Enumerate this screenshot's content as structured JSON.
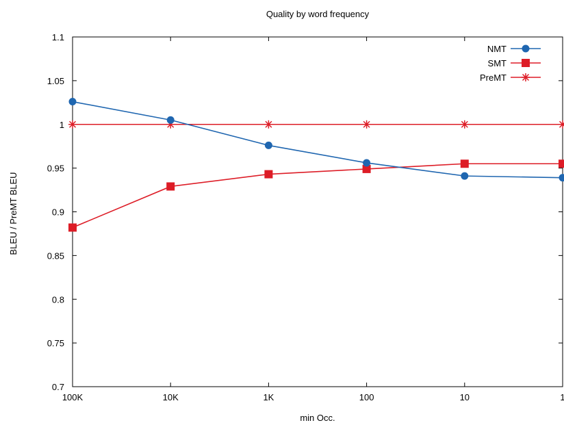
{
  "chart_data": {
    "type": "line",
    "title": "Quality by word frequency",
    "xlabel": "min Occ.",
    "ylabel": "BLEU / PreMT BLEU",
    "categories": [
      "100K",
      "10K",
      "1K",
      "100",
      "10",
      "1"
    ],
    "ylim": [
      0.7,
      1.1
    ],
    "yticks": [
      "0.7",
      "0.75",
      "0.8",
      "0.85",
      "0.9",
      "0.95",
      "1",
      "1.05",
      "1.1"
    ],
    "grid": false,
    "legend_position": "top-right",
    "series": [
      {
        "name": "NMT",
        "color": "#1f66b0",
        "marker": "circle",
        "values": [
          1.026,
          1.005,
          0.976,
          0.956,
          0.941,
          0.939
        ]
      },
      {
        "name": "SMT",
        "color": "#dd1c26",
        "marker": "square",
        "values": [
          0.882,
          0.929,
          0.943,
          0.949,
          0.955,
          0.955
        ]
      },
      {
        "name": "PreMT",
        "color": "#dd1c26",
        "marker": "star",
        "values": [
          1.0,
          1.0,
          1.0,
          1.0,
          1.0,
          1.0
        ]
      }
    ]
  }
}
